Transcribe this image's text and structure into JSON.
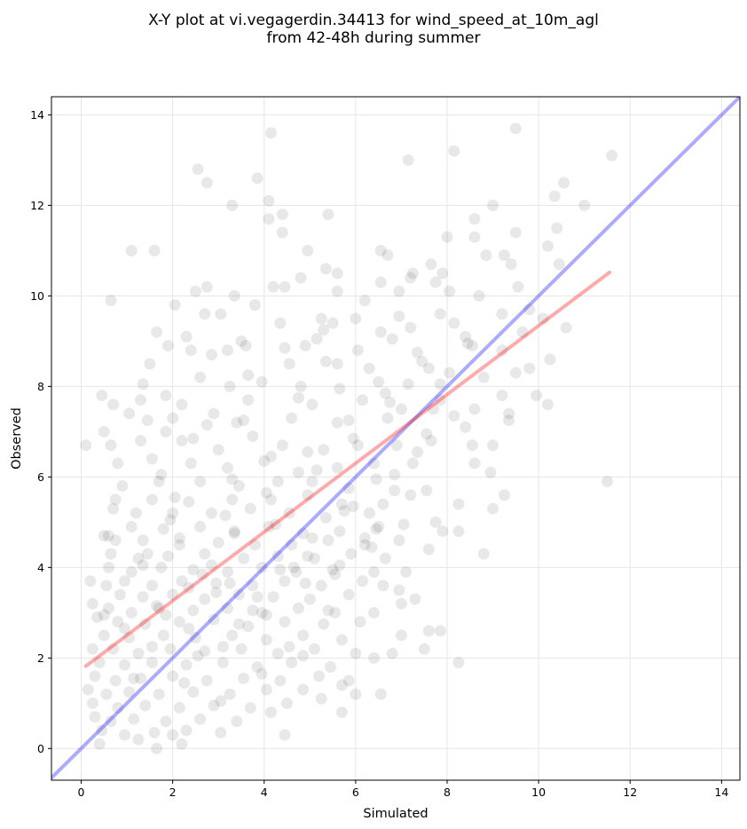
{
  "chart_data": {
    "type": "scatter",
    "title": [
      "X-Y plot at vi.vegagerdin.34413 for wind_speed_at_10m_agl",
      "from 42-48h during summer"
    ],
    "xlabel": "Simulated",
    "ylabel": "Observed",
    "xlim": [
      -0.65,
      14.4
    ],
    "ylim": [
      -0.7,
      14.4
    ],
    "xticks": [
      0,
      2,
      4,
      6,
      8,
      10,
      12,
      14
    ],
    "yticks": [
      0,
      2,
      4,
      6,
      8,
      10,
      12,
      14
    ],
    "grid": true,
    "point_color": "#000000",
    "point_opacity": 0.09,
    "reference_line": {
      "name": "y = x",
      "color": "#0000ff",
      "opacity": 0.33,
      "x": [
        -0.65,
        14.4
      ],
      "y": [
        -0.65,
        14.4
      ]
    },
    "fit_line": {
      "name": "linear fit",
      "color": "#ff0000",
      "opacity": 0.33,
      "x": [
        0.1,
        11.55
      ],
      "y": [
        1.82,
        10.52
      ]
    },
    "points": [
      [
        4.15,
        13.6
      ],
      [
        9.5,
        13.7
      ],
      [
        8.15,
        13.2
      ],
      [
        11.6,
        13.1
      ],
      [
        7.15,
        13.0
      ],
      [
        2.55,
        12.8
      ],
      [
        3.85,
        12.6
      ],
      [
        2.75,
        12.5
      ],
      [
        10.55,
        12.5
      ],
      [
        10.35,
        12.2
      ],
      [
        4.1,
        12.1
      ],
      [
        3.3,
        12.0
      ],
      [
        9.0,
        12.0
      ],
      [
        11.0,
        12.0
      ],
      [
        4.1,
        11.7
      ],
      [
        4.4,
        11.8
      ],
      [
        5.4,
        11.8
      ],
      [
        8.6,
        11.7
      ],
      [
        4.4,
        11.4
      ],
      [
        8.6,
        11.3
      ],
      [
        9.5,
        11.4
      ],
      [
        10.4,
        11.5
      ],
      [
        1.1,
        11.0
      ],
      [
        1.6,
        11.0
      ],
      [
        4.95,
        11.0
      ],
      [
        6.55,
        11.0
      ],
      [
        8.0,
        11.3
      ],
      [
        10.2,
        11.1
      ],
      [
        6.7,
        10.9
      ],
      [
        7.65,
        10.7
      ],
      [
        8.85,
        10.9
      ],
      [
        9.25,
        10.9
      ],
      [
        10.45,
        10.7
      ],
      [
        5.35,
        10.6
      ],
      [
        5.6,
        10.5
      ],
      [
        7.25,
        10.5
      ],
      [
        7.9,
        10.5
      ],
      [
        9.4,
        10.7
      ],
      [
        4.2,
        10.2
      ],
      [
        2.5,
        10.1
      ],
      [
        2.75,
        10.2
      ],
      [
        4.45,
        10.2
      ],
      [
        5.6,
        10.1
      ],
      [
        6.95,
        10.1
      ],
      [
        7.2,
        10.4
      ],
      [
        8.7,
        10.0
      ],
      [
        0.65,
        9.9
      ],
      [
        3.35,
        10.0
      ],
      [
        6.2,
        9.9
      ],
      [
        7.75,
        10.3
      ],
      [
        6.55,
        10.3
      ],
      [
        8.05,
        10.1
      ],
      [
        4.8,
        10.4
      ],
      [
        9.55,
        10.2
      ],
      [
        6.95,
        9.55
      ],
      [
        2.05,
        9.8
      ],
      [
        3.8,
        9.8
      ],
      [
        7.85,
        9.6
      ],
      [
        9.8,
        9.7
      ],
      [
        9.2,
        9.6
      ],
      [
        2.7,
        9.6
      ],
      [
        3.05,
        9.6
      ],
      [
        5.25,
        9.5
      ],
      [
        5.5,
        9.4
      ],
      [
        6.0,
        9.5
      ],
      [
        7.2,
        9.3
      ],
      [
        8.15,
        9.4
      ],
      [
        10.1,
        9.5
      ],
      [
        10.6,
        9.3
      ],
      [
        1.65,
        9.2
      ],
      [
        2.3,
        9.1
      ],
      [
        3.5,
        9.0
      ],
      [
        4.35,
        9.4
      ],
      [
        5.3,
        9.25
      ],
      [
        6.55,
        9.2
      ],
      [
        8.4,
        9.1
      ],
      [
        9.65,
        9.2
      ],
      [
        2.85,
        8.7
      ],
      [
        3.2,
        8.8
      ],
      [
        3.6,
        8.9
      ],
      [
        4.9,
        8.9
      ],
      [
        6.05,
        8.8
      ],
      [
        6.8,
        9.05
      ],
      [
        7.35,
        8.75
      ],
      [
        8.55,
        8.9
      ],
      [
        9.2,
        8.8
      ],
      [
        9.5,
        8.3
      ],
      [
        1.5,
        8.5
      ],
      [
        1.9,
        8.9
      ],
      [
        2.4,
        8.8
      ],
      [
        4.55,
        8.5
      ],
      [
        5.6,
        8.5
      ],
      [
        6.3,
        8.4
      ],
      [
        7.6,
        8.4
      ],
      [
        8.05,
        8.3
      ],
      [
        8.8,
        8.2
      ],
      [
        10.25,
        8.6
      ],
      [
        9.8,
        8.4
      ],
      [
        1.35,
        8.05
      ],
      [
        2.6,
        8.2
      ],
      [
        3.25,
        8.0
      ],
      [
        3.95,
        8.1
      ],
      [
        4.8,
        8.0
      ],
      [
        5.65,
        7.95
      ],
      [
        6.5,
        8.1
      ],
      [
        7.15,
        8.05
      ],
      [
        7.85,
        7.7
      ],
      [
        9.2,
        7.8
      ],
      [
        9.95,
        7.8
      ],
      [
        10.2,
        7.6
      ],
      [
        0.45,
        7.8
      ],
      [
        0.7,
        7.6
      ],
      [
        1.3,
        7.7
      ],
      [
        1.85,
        7.8
      ],
      [
        2.2,
        7.6
      ],
      [
        3.65,
        7.7
      ],
      [
        5.05,
        7.6
      ],
      [
        6.15,
        7.7
      ],
      [
        7.0,
        7.5
      ],
      [
        7.7,
        7.5
      ],
      [
        8.6,
        7.5
      ],
      [
        9.35,
        7.4
      ],
      [
        9.35,
        7.25
      ],
      [
        1.05,
        7.4
      ],
      [
        1.45,
        7.25
      ],
      [
        2.0,
        7.3
      ],
      [
        2.9,
        7.4
      ],
      [
        3.4,
        7.2
      ],
      [
        4.6,
        7.3
      ],
      [
        5.6,
        7.2
      ],
      [
        6.7,
        7.3
      ],
      [
        8.4,
        7.1
      ],
      [
        0.1,
        6.7
      ],
      [
        0.5,
        7.0
      ],
      [
        0.65,
        6.7
      ],
      [
        1.3,
        6.8
      ],
      [
        1.85,
        7.0
      ],
      [
        2.2,
        6.8
      ],
      [
        3.0,
        6.6
      ],
      [
        3.75,
        6.9
      ],
      [
        4.4,
        6.7
      ],
      [
        5.3,
        6.6
      ],
      [
        6.05,
        6.7
      ],
      [
        6.9,
        6.7
      ],
      [
        7.65,
        6.8
      ],
      [
        8.55,
        6.7
      ],
      [
        9.0,
        6.7
      ],
      [
        0.8,
        6.3
      ],
      [
        1.55,
        6.4
      ],
      [
        2.4,
        6.3
      ],
      [
        3.2,
        6.2
      ],
      [
        4.0,
        6.35
      ],
      [
        4.75,
        6.1
      ],
      [
        5.6,
        6.2
      ],
      [
        6.4,
        6.3
      ],
      [
        7.25,
        6.3
      ],
      [
        8.6,
        6.3
      ],
      [
        11.5,
        5.9
      ],
      [
        0.9,
        5.8
      ],
      [
        1.7,
        5.9
      ],
      [
        2.6,
        5.9
      ],
      [
        3.45,
        5.8
      ],
      [
        4.3,
        5.9
      ],
      [
        5.05,
        5.9
      ],
      [
        5.85,
        5.75
      ],
      [
        6.85,
        5.7
      ],
      [
        7.55,
        5.7
      ],
      [
        8.95,
        6.1
      ],
      [
        0.75,
        5.5
      ],
      [
        1.55,
        5.5
      ],
      [
        2.35,
        5.45
      ],
      [
        3.3,
        5.5
      ],
      [
        4.15,
        5.5
      ],
      [
        4.95,
        5.6
      ],
      [
        5.7,
        5.4
      ],
      [
        6.6,
        5.4
      ],
      [
        7.2,
        5.6
      ],
      [
        8.25,
        5.4
      ],
      [
        9.25,
        5.6
      ],
      [
        0.7,
        5.3
      ],
      [
        1.2,
        5.2
      ],
      [
        2.0,
        5.2
      ],
      [
        2.85,
        5.2
      ],
      [
        3.7,
        5.3
      ],
      [
        4.55,
        5.2
      ],
      [
        5.35,
        5.1
      ],
      [
        6.3,
        5.2
      ],
      [
        7.75,
        5.0
      ],
      [
        9.0,
        5.3
      ],
      [
        0.6,
        4.7
      ],
      [
        1.1,
        4.9
      ],
      [
        1.8,
        4.85
      ],
      [
        2.6,
        4.9
      ],
      [
        3.35,
        4.8
      ],
      [
        4.1,
        4.9
      ],
      [
        4.85,
        4.75
      ],
      [
        5.65,
        4.8
      ],
      [
        6.5,
        4.9
      ],
      [
        7.9,
        4.8
      ],
      [
        8.25,
        4.8
      ],
      [
        0.5,
        4.7
      ],
      [
        0.75,
        4.6
      ],
      [
        1.35,
        4.6
      ],
      [
        2.15,
        4.5
      ],
      [
        3.0,
        4.55
      ],
      [
        3.8,
        4.5
      ],
      [
        4.6,
        4.5
      ],
      [
        5.4,
        4.6
      ],
      [
        6.2,
        4.5
      ],
      [
        6.95,
        4.6
      ],
      [
        7.6,
        4.4
      ],
      [
        0.65,
        4.3
      ],
      [
        1.25,
        4.2
      ],
      [
        1.9,
        4.25
      ],
      [
        2.7,
        4.3
      ],
      [
        3.55,
        4.2
      ],
      [
        4.3,
        4.25
      ],
      [
        5.1,
        4.2
      ],
      [
        5.9,
        4.3
      ],
      [
        6.65,
        4.2
      ],
      [
        8.8,
        4.3
      ],
      [
        0.6,
        4.0
      ],
      [
        1.1,
        3.9
      ],
      [
        1.75,
        4.0
      ],
      [
        2.45,
        3.95
      ],
      [
        3.2,
        3.9
      ],
      [
        3.95,
        4.0
      ],
      [
        4.7,
        3.9
      ],
      [
        5.5,
        3.95
      ],
      [
        6.4,
        3.9
      ],
      [
        7.1,
        3.9
      ],
      [
        0.2,
        3.7
      ],
      [
        0.55,
        3.6
      ],
      [
        0.95,
        3.7
      ],
      [
        1.55,
        3.6
      ],
      [
        2.2,
        3.7
      ],
      [
        2.95,
        3.65
      ],
      [
        3.75,
        3.6
      ],
      [
        4.45,
        3.7
      ],
      [
        5.25,
        3.6
      ],
      [
        6.15,
        3.7
      ],
      [
        6.6,
        3.6
      ],
      [
        0.85,
        3.4
      ],
      [
        1.35,
        3.35
      ],
      [
        2.0,
        3.4
      ],
      [
        2.7,
        3.3
      ],
      [
        3.45,
        3.4
      ],
      [
        4.2,
        3.35
      ],
      [
        5.0,
        3.3
      ],
      [
        5.85,
        3.4
      ],
      [
        6.95,
        3.5
      ],
      [
        0.25,
        3.2
      ],
      [
        0.6,
        3.1
      ],
      [
        1.1,
        3.0
      ],
      [
        1.7,
        3.1
      ],
      [
        2.45,
        3.05
      ],
      [
        3.2,
        3.1
      ],
      [
        3.95,
        3.0
      ],
      [
        4.75,
        3.1
      ],
      [
        5.55,
        3.0
      ],
      [
        6.4,
        3.0
      ],
      [
        7.3,
        3.3
      ],
      [
        7.0,
        3.2
      ],
      [
        0.35,
        2.9
      ],
      [
        0.8,
        2.8
      ],
      [
        1.4,
        2.75
      ],
      [
        2.15,
        2.8
      ],
      [
        2.9,
        2.85
      ],
      [
        3.65,
        2.7
      ],
      [
        4.45,
        2.8
      ],
      [
        5.3,
        2.75
      ],
      [
        6.1,
        2.8
      ],
      [
        7.0,
        2.5
      ],
      [
        0.5,
        2.5
      ],
      [
        1.05,
        2.45
      ],
      [
        1.8,
        2.5
      ],
      [
        2.5,
        2.45
      ],
      [
        3.3,
        2.5
      ],
      [
        4.05,
        2.4
      ],
      [
        4.85,
        2.5
      ],
      [
        5.7,
        2.4
      ],
      [
        7.6,
        2.6
      ],
      [
        7.85,
        2.6
      ],
      [
        0.25,
        2.2
      ],
      [
        0.7,
        2.2
      ],
      [
        1.25,
        2.1
      ],
      [
        1.95,
        2.2
      ],
      [
        2.7,
        2.15
      ],
      [
        3.5,
        2.2
      ],
      [
        4.3,
        2.1
      ],
      [
        5.1,
        2.2
      ],
      [
        6.0,
        2.1
      ],
      [
        6.8,
        2.1
      ],
      [
        7.5,
        2.2
      ],
      [
        0.4,
        1.9
      ],
      [
        0.95,
        1.85
      ],
      [
        1.55,
        1.9
      ],
      [
        2.3,
        1.85
      ],
      [
        3.1,
        1.9
      ],
      [
        3.85,
        1.8
      ],
      [
        4.6,
        1.9
      ],
      [
        5.45,
        1.8
      ],
      [
        6.4,
        2.0
      ],
      [
        8.25,
        1.9
      ],
      [
        0.3,
        1.6
      ],
      [
        0.75,
        1.5
      ],
      [
        1.3,
        1.55
      ],
      [
        2.0,
        1.6
      ],
      [
        2.75,
        1.5
      ],
      [
        3.55,
        1.55
      ],
      [
        4.35,
        1.5
      ],
      [
        5.2,
        1.6
      ],
      [
        5.85,
        1.5
      ],
      [
        0.15,
        1.3
      ],
      [
        0.55,
        1.2
      ],
      [
        1.05,
        1.25
      ],
      [
        1.7,
        1.2
      ],
      [
        2.45,
        1.25
      ],
      [
        3.25,
        1.2
      ],
      [
        4.05,
        1.3
      ],
      [
        4.85,
        1.3
      ],
      [
        5.7,
        1.4
      ],
      [
        6.0,
        1.2
      ],
      [
        6.55,
        1.2
      ],
      [
        0.25,
        1.0
      ],
      [
        0.8,
        0.9
      ],
      [
        1.4,
        0.95
      ],
      [
        2.15,
        0.9
      ],
      [
        2.9,
        0.95
      ],
      [
        3.7,
        0.9
      ],
      [
        4.5,
        1.0
      ],
      [
        5.25,
        1.1
      ],
      [
        0.3,
        0.7
      ],
      [
        0.65,
        0.6
      ],
      [
        1.15,
        0.65
      ],
      [
        1.85,
        0.6
      ],
      [
        2.6,
        0.65
      ],
      [
        3.4,
        0.6
      ],
      [
        4.15,
        0.8
      ],
      [
        5.7,
        0.8
      ],
      [
        0.45,
        0.4
      ],
      [
        0.95,
        0.3
      ],
      [
        1.6,
        0.35
      ],
      [
        2.3,
        0.4
      ],
      [
        3.05,
        0.35
      ],
      [
        4.45,
        0.3
      ],
      [
        0.4,
        0.1
      ],
      [
        1.25,
        0.2
      ],
      [
        2.0,
        0.3
      ],
      [
        2.2,
        0.1
      ],
      [
        1.65,
        0.0
      ],
      [
        0.5,
        2.95
      ],
      [
        1.45,
        4.3
      ],
      [
        2.35,
        3.55
      ],
      [
        3.1,
        2.25
      ],
      [
        3.85,
        3.35
      ],
      [
        4.65,
        4.0
      ],
      [
        5.4,
        3.05
      ],
      [
        6.2,
        4.65
      ],
      [
        1.15,
        1.55
      ],
      [
        2.55,
        2.05
      ],
      [
        3.35,
        4.75
      ],
      [
        4.9,
        3.65
      ],
      [
        5.75,
        5.25
      ],
      [
        6.45,
        5.95
      ],
      [
        7.35,
        6.55
      ],
      [
        4.15,
        6.45
      ],
      [
        3.3,
        5.95
      ],
      [
        2.05,
        5.55
      ],
      [
        1.65,
        3.15
      ],
      [
        2.95,
        3.45
      ],
      [
        4.25,
        4.95
      ],
      [
        5.15,
        6.15
      ],
      [
        5.95,
        6.85
      ],
      [
        6.75,
        7.65
      ],
      [
        7.85,
        8.05
      ],
      [
        8.45,
        8.95
      ],
      [
        3.55,
        7.25
      ],
      [
        4.75,
        7.75
      ],
      [
        5.35,
        8.55
      ],
      [
        2.45,
        6.85
      ],
      [
        1.95,
        5.05
      ],
      [
        2.85,
        4.05
      ],
      [
        3.75,
        3.05
      ],
      [
        4.55,
        2.25
      ],
      [
        5.55,
        3.85
      ],
      [
        6.35,
        4.45
      ],
      [
        7.05,
        4.95
      ],
      [
        2.25,
        1.45
      ],
      [
        3.05,
        1.05
      ],
      [
        3.95,
        1.65
      ],
      [
        4.85,
        2.05
      ],
      [
        1.55,
        2.25
      ],
      [
        2.65,
        3.85
      ],
      [
        3.45,
        2.75
      ],
      [
        4.35,
        3.95
      ],
      [
        5.05,
        4.65
      ],
      [
        5.95,
        5.35
      ],
      [
        6.85,
        6.05
      ],
      [
        7.55,
        6.95
      ],
      [
        8.15,
        7.35
      ],
      [
        1.75,
        6.05
      ],
      [
        2.75,
        7.15
      ],
      [
        3.65,
        8.25
      ],
      [
        4.45,
        8.85
      ],
      [
        5.15,
        9.05
      ],
      [
        1.35,
        4.05
      ],
      [
        2.15,
        4.65
      ],
      [
        3.15,
        5.15
      ],
      [
        4.05,
        5.65
      ],
      [
        4.95,
        6.55
      ],
      [
        5.85,
        7.25
      ],
      [
        6.65,
        7.85
      ],
      [
        7.45,
        8.55
      ],
      [
        0.95,
        2.65
      ],
      [
        1.85,
        2.95
      ],
      [
        2.35,
        2.65
      ],
      [
        3.25,
        3.65
      ],
      [
        4.05,
        2.95
      ],
      [
        4.95,
        4.25
      ],
      [
        5.65,
        4.05
      ],
      [
        6.45,
        4.85
      ]
    ]
  }
}
